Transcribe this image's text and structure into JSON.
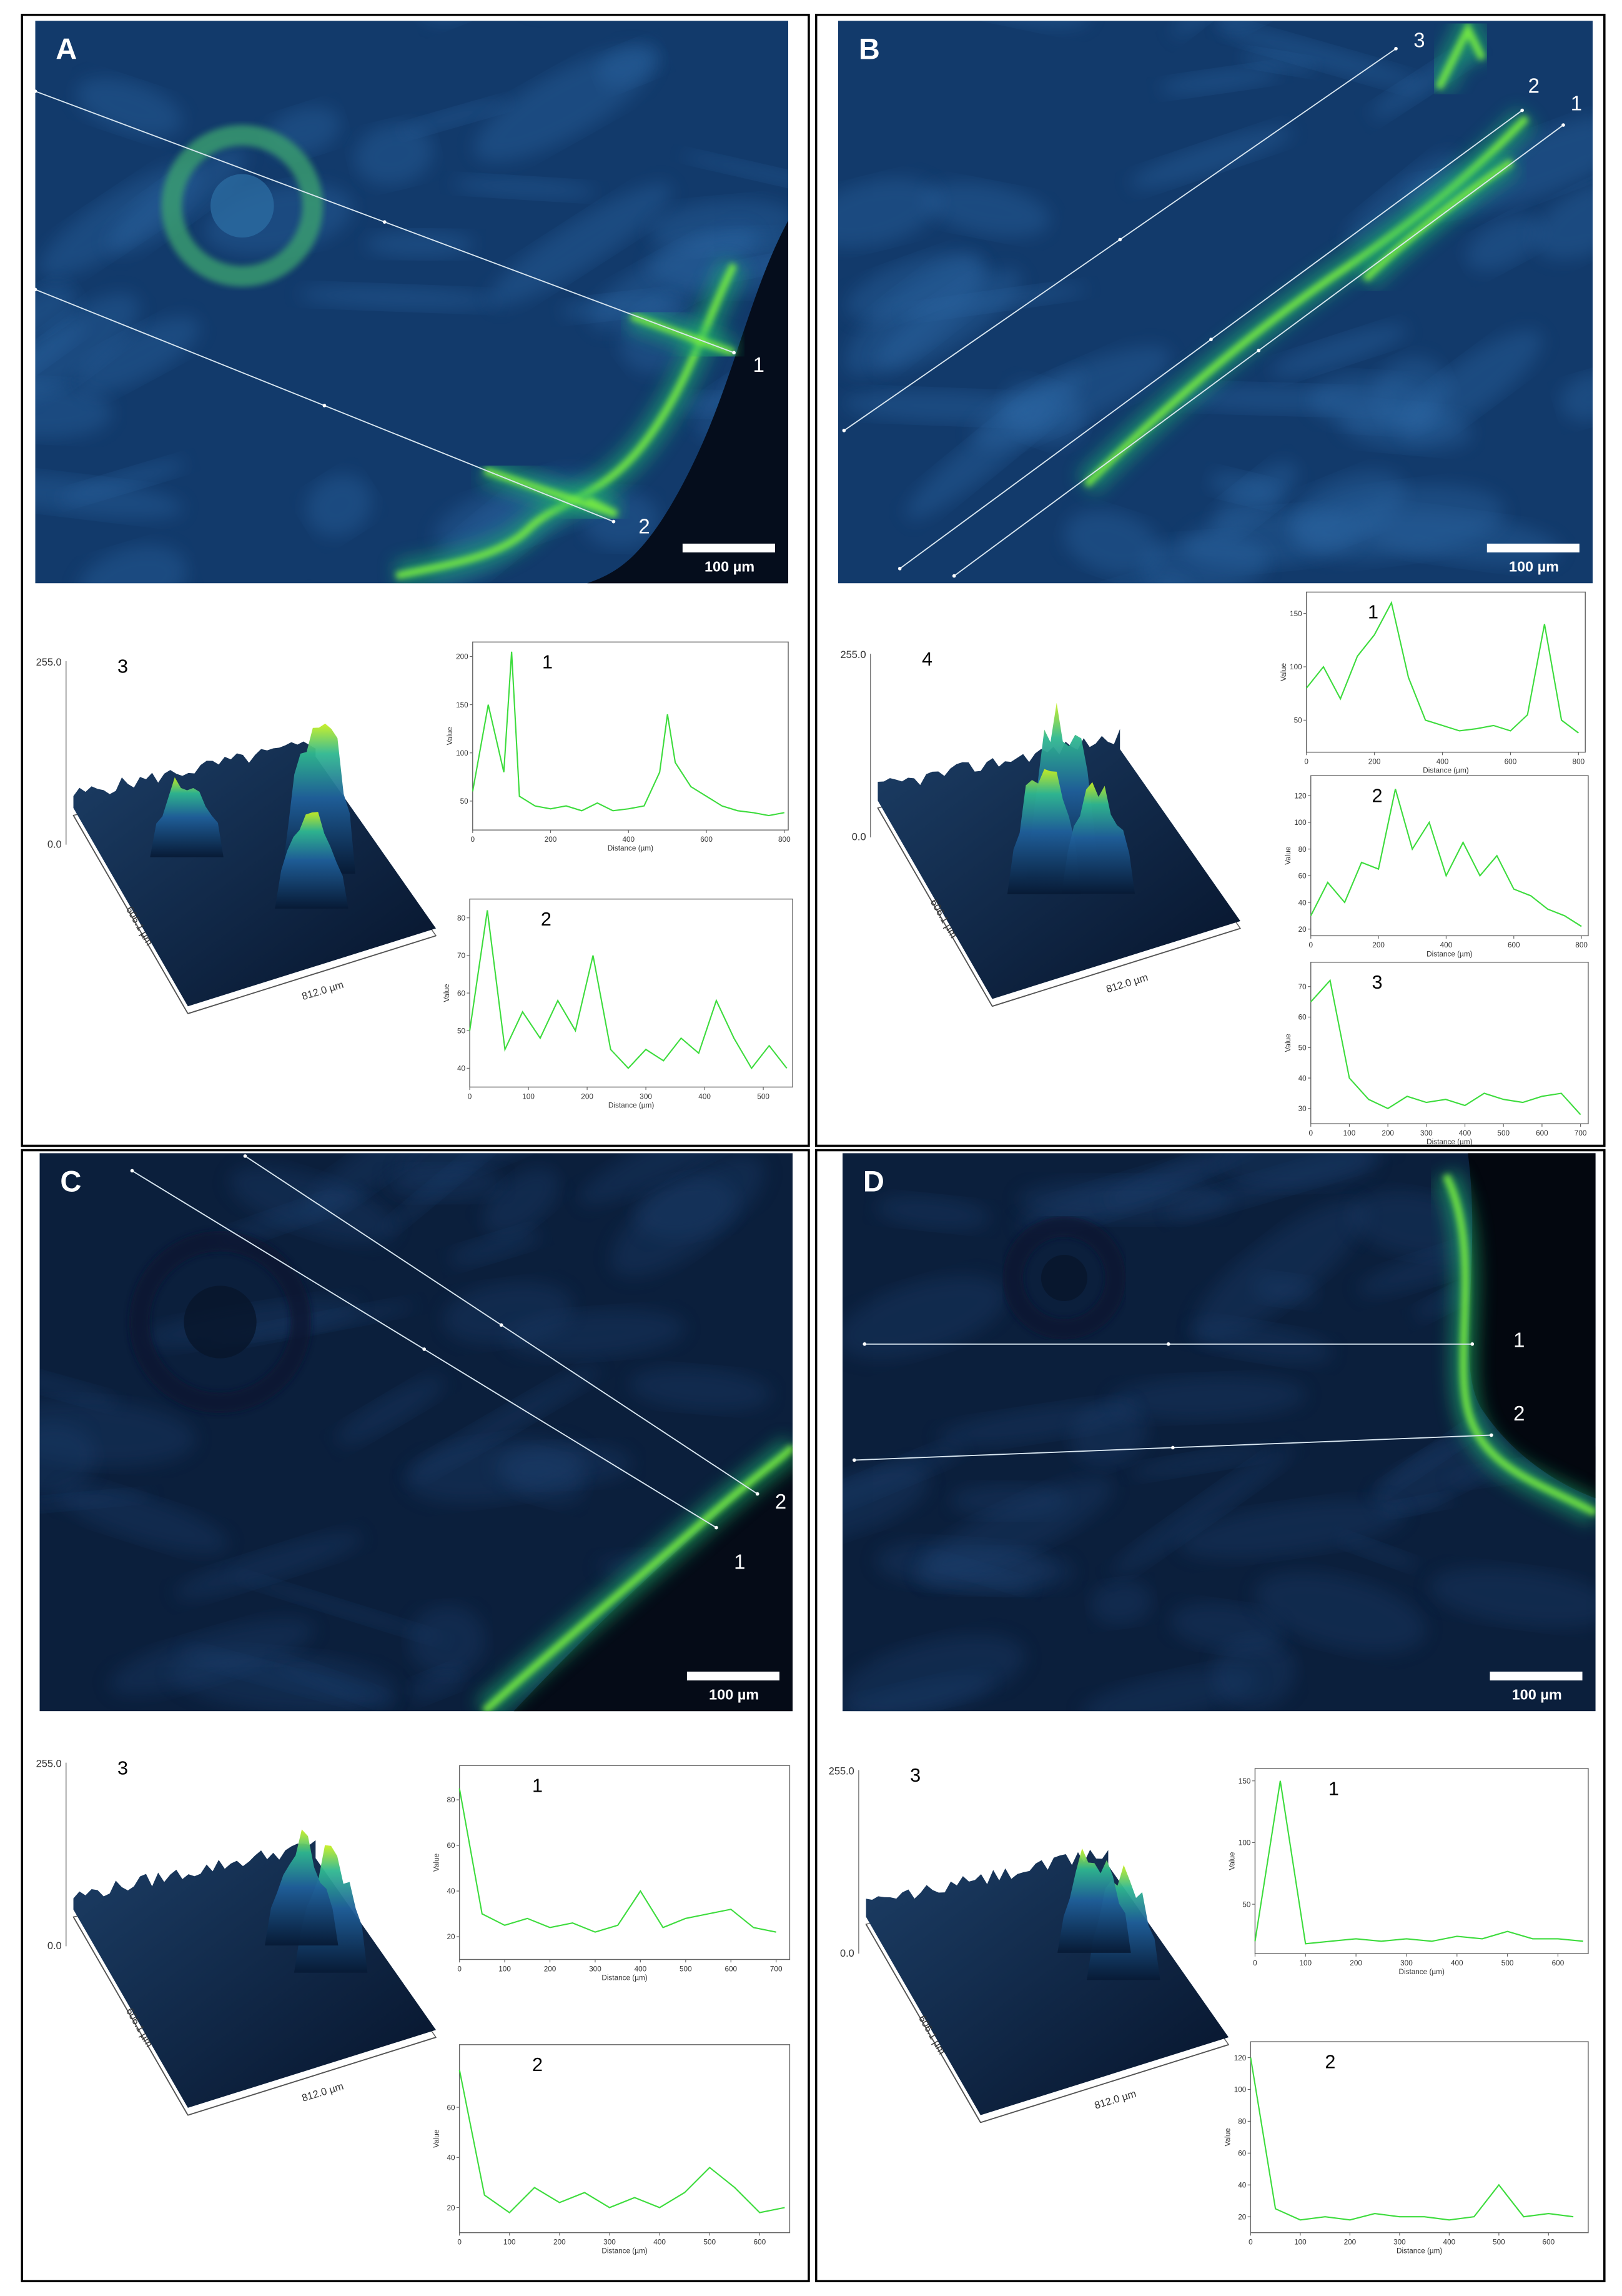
{
  "panels": [
    {
      "label": "A",
      "scale_bar": "100 µm",
      "line_labels": [
        "1",
        "2"
      ],
      "surface": {
        "label": "3",
        "z_max": "255.0",
        "z_min": "0.0",
        "y_extent": "606.1 µm",
        "x_extent": "812.0 µm"
      }
    },
    {
      "label": "B",
      "scale_bar": "100 µm",
      "line_labels": [
        "1",
        "2",
        "3"
      ],
      "surface": {
        "label": "4",
        "z_max": "255.0",
        "z_min": "0.0",
        "y_extent": "606.1 µm",
        "x_extent": "812.0 µm"
      }
    },
    {
      "label": "C",
      "scale_bar": "100 µm",
      "line_labels": [
        "1",
        "2"
      ],
      "surface": {
        "label": "3",
        "z_max": "255.0",
        "z_min": "0.0",
        "y_extent": "606.1 µm",
        "x_extent": "812.0 µm"
      }
    },
    {
      "label": "D",
      "scale_bar": "100 µm",
      "line_labels": [
        "1",
        "2"
      ],
      "surface": {
        "label": "3",
        "z_max": "255.0",
        "z_min": "0.0",
        "y_extent": "606.1 µm",
        "x_extent": "812.0 µm"
      }
    }
  ],
  "chart_data": [
    {
      "type": "line",
      "label": "1",
      "xlabel": "Distance (µm)",
      "ylabel": "Value",
      "x": [
        0,
        40,
        80,
        100,
        120,
        160,
        200,
        240,
        280,
        320,
        360,
        400,
        440,
        480,
        500,
        520,
        560,
        600,
        640,
        680,
        720,
        760,
        800
      ],
      "series": [
        {
          "color": "#3ddc3d",
          "values": [
            60,
            150,
            80,
            205,
            55,
            45,
            42,
            45,
            40,
            48,
            40,
            42,
            45,
            80,
            140,
            90,
            65,
            55,
            45,
            40,
            38,
            35,
            38
          ]
        }
      ],
      "xlim": [
        0,
        810
      ],
      "ylim": [
        20,
        215
      ],
      "xticks": [
        0,
        200,
        400,
        600,
        800
      ],
      "yticks": [
        50,
        100,
        150,
        200
      ]
    },
    {
      "type": "line",
      "label": "2",
      "xlabel": "Distance (µm)",
      "ylabel": "Value",
      "x": [
        0,
        30,
        60,
        90,
        120,
        150,
        180,
        210,
        240,
        270,
        300,
        330,
        360,
        390,
        420,
        450,
        480,
        510,
        540
      ],
      "series": [
        {
          "color": "#3ddc3d",
          "values": [
            50,
            82,
            45,
            55,
            48,
            58,
            50,
            70,
            45,
            40,
            45,
            42,
            48,
            44,
            58,
            48,
            40,
            46,
            40
          ]
        }
      ],
      "xlim": [
        0,
        550
      ],
      "ylim": [
        35,
        85
      ],
      "xticks": [
        0,
        100,
        200,
        300,
        400,
        500
      ],
      "yticks": [
        40,
        50,
        60,
        70,
        80
      ]
    },
    {
      "type": "line",
      "label": "1",
      "xlabel": "Distance (µm)",
      "ylabel": "Value",
      "x": [
        0,
        50,
        100,
        150,
        200,
        250,
        300,
        350,
        400,
        450,
        500,
        550,
        600,
        650,
        700,
        750,
        800
      ],
      "series": [
        {
          "color": "#3ddc3d",
          "values": [
            80,
            100,
            70,
            110,
            130,
            160,
            90,
            50,
            45,
            40,
            42,
            45,
            40,
            55,
            140,
            50,
            38
          ]
        }
      ],
      "xlim": [
        0,
        820
      ],
      "ylim": [
        20,
        170
      ],
      "xticks": [
        0,
        200,
        400,
        600,
        800
      ],
      "yticks": [
        50,
        100,
        150
      ]
    },
    {
      "type": "line",
      "label": "2",
      "xlabel": "Distance (µm)",
      "ylabel": "Value",
      "x": [
        0,
        50,
        100,
        150,
        200,
        250,
        300,
        350,
        400,
        450,
        500,
        550,
        600,
        650,
        700,
        750,
        800
      ],
      "series": [
        {
          "color": "#3ddc3d",
          "values": [
            30,
            55,
            40,
            70,
            65,
            125,
            80,
            100,
            60,
            85,
            60,
            75,
            50,
            45,
            35,
            30,
            22
          ]
        }
      ],
      "xlim": [
        0,
        820
      ],
      "ylim": [
        15,
        135
      ],
      "xticks": [
        0,
        200,
        400,
        600,
        800
      ],
      "yticks": [
        20,
        40,
        60,
        80,
        100,
        120
      ]
    },
    {
      "type": "line",
      "label": "3",
      "xlabel": "Distance (µm)",
      "ylabel": "Value",
      "x": [
        0,
        50,
        100,
        150,
        200,
        250,
        300,
        350,
        400,
        450,
        500,
        550,
        600,
        650,
        700
      ],
      "series": [
        {
          "color": "#3ddc3d",
          "values": [
            65,
            72,
            40,
            33,
            30,
            34,
            32,
            33,
            31,
            35,
            33,
            32,
            34,
            35,
            28
          ]
        }
      ],
      "xlim": [
        0,
        720
      ],
      "ylim": [
        25,
        78
      ],
      "xticks": [
        0,
        100,
        200,
        300,
        400,
        500,
        600,
        700
      ],
      "yticks": [
        30,
        40,
        50,
        60,
        70
      ]
    },
    {
      "type": "line",
      "label": "1",
      "xlabel": "Distance (µm)",
      "ylabel": "Value",
      "x": [
        0,
        50,
        100,
        150,
        200,
        250,
        300,
        350,
        400,
        450,
        500,
        550,
        600,
        650,
        700
      ],
      "series": [
        {
          "color": "#3ddc3d",
          "values": [
            85,
            30,
            25,
            28,
            24,
            26,
            22,
            25,
            40,
            24,
            28,
            30,
            32,
            24,
            22
          ]
        }
      ],
      "xlim": [
        0,
        730
      ],
      "ylim": [
        10,
        95
      ],
      "xticks": [
        0,
        100,
        200,
        300,
        400,
        500,
        600,
        700
      ],
      "yticks": [
        20,
        40,
        60,
        80
      ]
    },
    {
      "type": "line",
      "label": "2",
      "xlabel": "Distance (µm)",
      "ylabel": "Value",
      "x": [
        0,
        50,
        100,
        150,
        200,
        250,
        300,
        350,
        400,
        450,
        500,
        550,
        600,
        650
      ],
      "series": [
        {
          "color": "#3ddc3d",
          "values": [
            75,
            25,
            18,
            28,
            22,
            26,
            20,
            24,
            20,
            26,
            36,
            28,
            18,
            20
          ]
        }
      ],
      "xlim": [
        0,
        660
      ],
      "ylim": [
        10,
        85
      ],
      "xticks": [
        0,
        100,
        200,
        300,
        400,
        500,
        600
      ],
      "yticks": [
        20,
        40,
        60
      ]
    },
    {
      "type": "line",
      "label": "1",
      "xlabel": "Distance (µm)",
      "ylabel": "Value",
      "x": [
        0,
        50,
        100,
        150,
        200,
        250,
        300,
        350,
        400,
        450,
        500,
        550,
        600,
        650
      ],
      "series": [
        {
          "color": "#3ddc3d",
          "values": [
            20,
            150,
            18,
            20,
            22,
            20,
            22,
            20,
            24,
            22,
            28,
            22,
            22,
            20
          ]
        }
      ],
      "xlim": [
        0,
        660
      ],
      "ylim": [
        10,
        160
      ],
      "xticks": [
        0,
        100,
        200,
        300,
        400,
        500,
        600
      ],
      "yticks": [
        50,
        100,
        150
      ]
    },
    {
      "type": "line",
      "label": "2",
      "xlabel": "Distance (µm)",
      "ylabel": "Value",
      "x": [
        0,
        50,
        100,
        150,
        200,
        250,
        300,
        350,
        400,
        450,
        500,
        550,
        600,
        650
      ],
      "series": [
        {
          "color": "#3ddc3d",
          "values": [
            120,
            25,
            18,
            20,
            18,
            22,
            20,
            20,
            18,
            20,
            40,
            20,
            22,
            20
          ]
        }
      ],
      "xlim": [
        0,
        680
      ],
      "ylim": [
        10,
        130
      ],
      "xticks": [
        0,
        100,
        200,
        300,
        400,
        500,
        600
      ],
      "yticks": [
        20,
        40,
        60,
        80,
        100,
        120
      ]
    }
  ]
}
